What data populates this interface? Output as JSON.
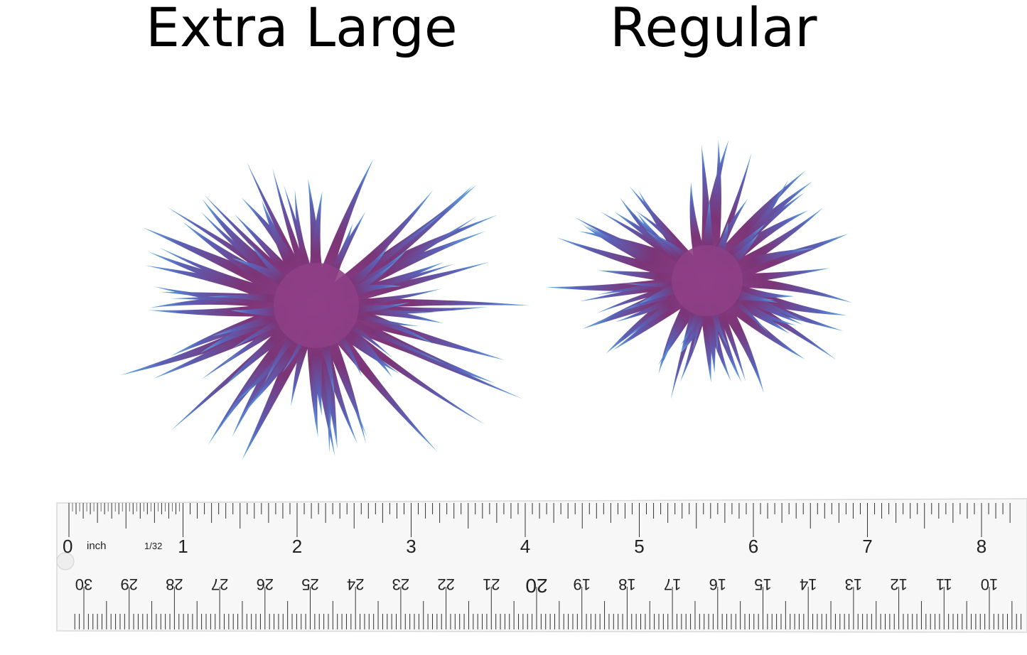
{
  "titles": {
    "left": "Extra Large",
    "right": "Regular"
  },
  "plants": {
    "base_color": "#7b3577",
    "tip_color": "#5fb0e8",
    "core_color": "#8e3f86"
  },
  "ruler": {
    "zero_label": "0",
    "unit_label": "inch",
    "fraction_label": "1/32",
    "inch_labels": [
      "1",
      "2",
      "3",
      "4",
      "5",
      "6",
      "7",
      "8"
    ],
    "cm_labels": [
      "30",
      "29",
      "28",
      "27",
      "26",
      "25",
      "24",
      "23",
      "22",
      "21",
      "20",
      "19",
      "18",
      "17",
      "16",
      "15",
      "14",
      "13",
      "12",
      "11",
      "10"
    ]
  }
}
